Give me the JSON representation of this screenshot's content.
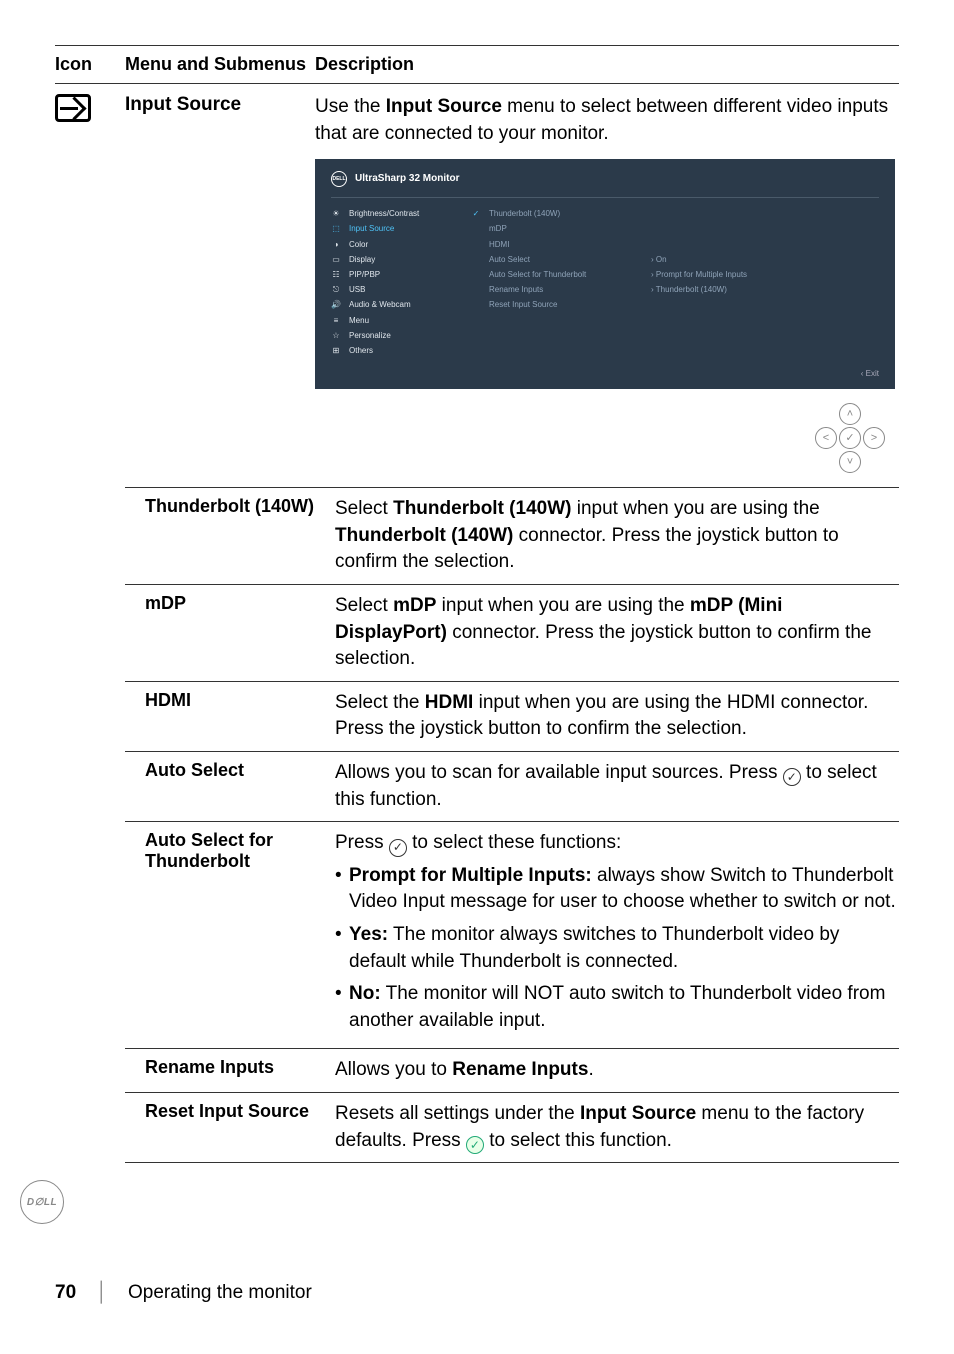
{
  "header": {
    "icon": "Icon",
    "menu": "Menu and Submenus",
    "desc": "Description"
  },
  "main": {
    "title": "Input Source",
    "intro_prefix": "Use the ",
    "intro_bold": "Input Source",
    "intro_suffix": " menu to select between different video inputs that are connected to your monitor."
  },
  "osd": {
    "title": "UltraSharp 32 Monitor",
    "left": [
      {
        "icon": "☀",
        "label": "Brightness/Contrast",
        "cls": "white"
      },
      {
        "icon": "⬚",
        "label": "Input Source",
        "cls": "active"
      },
      {
        "icon": "◑",
        "label": "Color",
        "cls": "white"
      },
      {
        "icon": "▭",
        "label": "Display",
        "cls": "white"
      },
      {
        "icon": "☷",
        "label": "PIP/PBP",
        "cls": "white"
      },
      {
        "icon": "⎋",
        "label": "USB",
        "cls": "white"
      },
      {
        "icon": "🔊",
        "label": "Audio & Webcam",
        "cls": "white"
      },
      {
        "icon": "≡",
        "label": "Menu",
        "cls": "white"
      },
      {
        "icon": "☆",
        "label": "Personalize",
        "cls": "white"
      },
      {
        "icon": "⊞",
        "label": "Others",
        "cls": "white"
      }
    ],
    "mid": [
      {
        "prefix": "✓",
        "label": "Thunderbolt (140W)"
      },
      {
        "prefix": "",
        "label": "mDP"
      },
      {
        "prefix": "",
        "label": "HDMI"
      },
      {
        "prefix": "",
        "label": "Auto Select"
      },
      {
        "prefix": "",
        "label": "Auto Select for Thunderbolt"
      },
      {
        "prefix": "",
        "label": "Rename Inputs"
      },
      {
        "prefix": "",
        "label": "Reset Input Source"
      }
    ],
    "right": [
      "",
      "",
      "",
      "›  On",
      "›  Prompt for Multiple Inputs",
      "›  Thunderbolt (140W)",
      ""
    ],
    "exit": "‹  Exit"
  },
  "rows": {
    "tb": {
      "menu": "Thunderbolt (140W)",
      "p1": "Select ",
      "b1": "Thunderbolt (140W)",
      "p2": " input when you are using the ",
      "b2": "Thunderbolt (140W)",
      "p3": " connector. Press the joystick button to confirm the selection."
    },
    "mdp": {
      "menu": "mDP",
      "p1": "Select ",
      "b1": "mDP",
      "p2": " input when you are using the ",
      "b2": "mDP (Mini DisplayPort)",
      "p3": " connector. Press the joystick button to confirm the selection."
    },
    "hdmi": {
      "menu": "HDMI",
      "p1": "Select the ",
      "b1": "HDMI",
      "p2": " input when you are using the HDMI connector. Press the joystick button to confirm the selection."
    },
    "auto": {
      "menu": "Auto Select",
      "p1": "Allows you to scan for available input sources. Press ",
      "p2": " to select this function."
    },
    "autotb": {
      "menu": "Auto Select for Thunderbolt",
      "p1": "Press ",
      "p2": " to select these functions:",
      "li1b": "Prompt for Multiple Inputs:",
      "li1": " always show Switch to Thunderbolt Video Input message for user to choose whether to switch or not.",
      "li2b": "Yes:",
      "li2": " The monitor always switches to Thunderbolt video by default while Thunderbolt is connected.",
      "li3b": "No:",
      "li3": " The monitor will NOT auto switch to Thunderbolt video from another available input."
    },
    "rename": {
      "menu": "Rename Inputs",
      "p1": "Allows you to ",
      "b1": "Rename Inputs",
      "p2": "."
    },
    "reset": {
      "menu": "Reset Input Source",
      "p1": "Resets all settings under the ",
      "b1": "Input Source",
      "p2": " menu to the factory defaults. Press ",
      "p3": " to select this function."
    }
  },
  "footer": {
    "page": "70",
    "text": "Operating the monitor"
  },
  "dell": "D∅LL"
}
